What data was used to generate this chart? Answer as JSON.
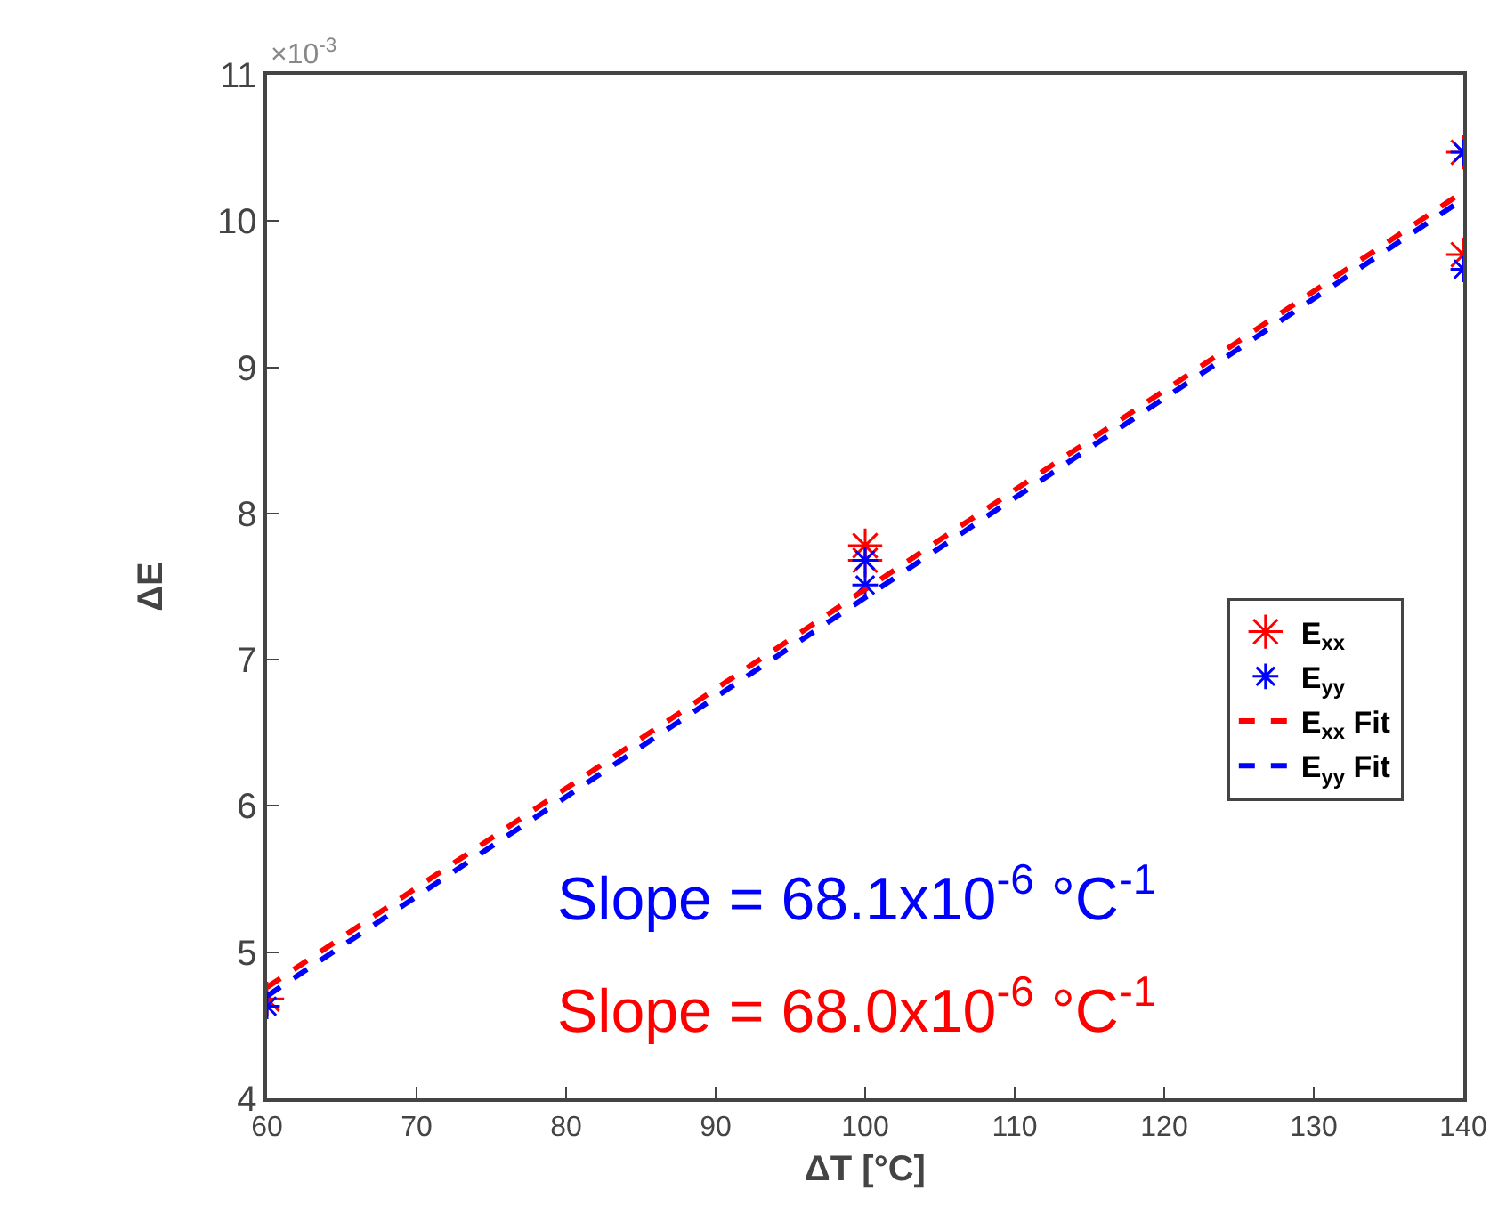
{
  "chart_data": {
    "type": "scatter",
    "xlabel": "ΔT [°C]",
    "ylabel": "ΔE",
    "xlim": [
      60,
      140
    ],
    "xticks": [
      60,
      70,
      80,
      90,
      100,
      110,
      120,
      130,
      140
    ],
    "ylim": [
      4,
      11
    ],
    "yticks": [
      4,
      5,
      6,
      7,
      8,
      9,
      10,
      11
    ],
    "grid": false,
    "legend": "right",
    "series": [
      {
        "name": "E$_{xx}$",
        "type": "scatter",
        "marker": "cross",
        "color": "#ff0000",
        "x": [
          60,
          100,
          100,
          140,
          140
        ],
        "values": [
          4.68,
          7.78,
          7.68,
          10.47,
          9.77
        ]
      },
      {
        "name": "E$_{yy}$",
        "type": "scatter",
        "marker": "cross",
        "color": "#0000ff",
        "x": [
          60,
          100,
          100,
          140,
          140
        ],
        "values": [
          4.63,
          7.68,
          7.51,
          10.47,
          9.67
        ]
      },
      {
        "name": "E$_{xx}$ Fit",
        "type": "line",
        "marker": "none",
        "line_style": "dashed",
        "color": "#ff0000",
        "x": [
          60,
          140
        ],
        "values": [
          4.76,
          10.2
        ]
      },
      {
        "name": "E$_{yy}$ Fit",
        "type": "line",
        "marker": "none",
        "line_style": "dashed",
        "color": "#0000ff",
        "x": [
          60,
          140
        ],
        "values": [
          4.7,
          10.15
        ]
      }
    ],
    "annotations": [
      "×10$^{-3}$",
      "Slope = 68.1x10$^{-6}$ °C$^{-1}$",
      "Slope = 68.0x10$^{-6}$ °C$^{-1}$"
    ]
  }
}
